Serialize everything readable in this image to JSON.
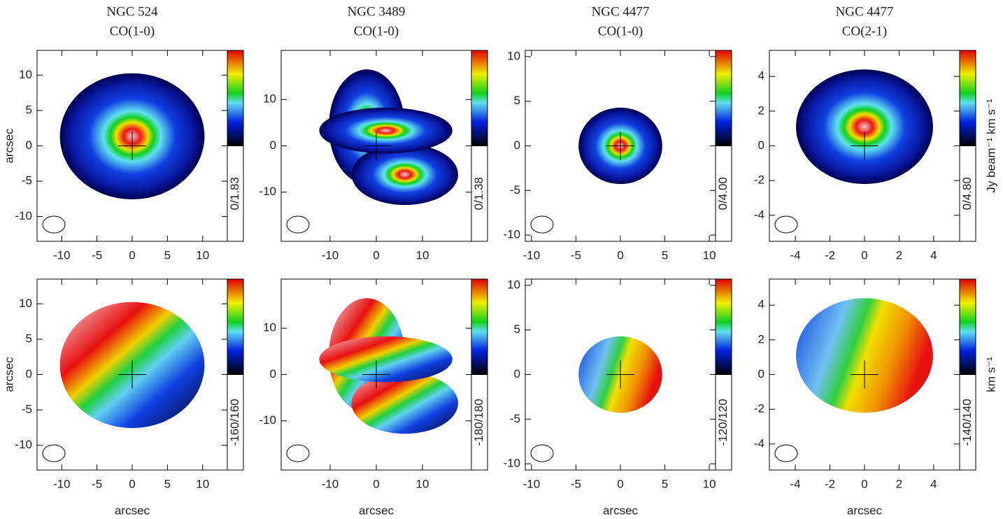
{
  "chart_data": [
    {
      "type": "map",
      "title": "NGC 524",
      "subtitle": "CO(1-0)",
      "ylabel": "arcsec",
      "xlim": [
        -13.5,
        13.5
      ],
      "ylim": [
        -13.5,
        13.5
      ],
      "xticks": [
        -10,
        -5,
        0,
        5,
        10
      ],
      "yticks": [
        -10,
        -5,
        0,
        5,
        10
      ],
      "colorbar_range": "0/1.83"
    },
    {
      "type": "map",
      "title": "NGC 3489",
      "subtitle": "CO(1-0)",
      "xlim": [
        -20.6,
        20.6
      ],
      "ylim": [
        -20.6,
        20.6
      ],
      "xticks": [
        -10,
        0,
        10
      ],
      "yticks": [
        -10,
        0,
        10
      ],
      "colorbar_range": "0/1.38"
    },
    {
      "type": "map",
      "title": "NGC 4477",
      "subtitle": "CO(1-0)",
      "xlim": [
        -10.7,
        10.7
      ],
      "ylim": [
        -10.7,
        10.7
      ],
      "xticks": [
        -10,
        -5,
        0,
        5,
        10
      ],
      "yticks": [
        -10,
        -5,
        0,
        5,
        10
      ],
      "colorbar_range": "0/4.00"
    },
    {
      "type": "map",
      "title": "NGC 4477",
      "subtitle": "CO(2-1)",
      "xlim": [
        -5.5,
        5.5
      ],
      "ylim": [
        -5.5,
        5.5
      ],
      "xticks": [
        -4,
        -2,
        0,
        2,
        4
      ],
      "yticks": [
        -4,
        -2,
        0,
        2,
        4
      ],
      "colorbar_range": "0/4.80",
      "colorbar_label": "Jy beam⁻¹ km s⁻¹"
    },
    {
      "type": "map",
      "xlabel": "arcsec",
      "ylabel": "arcsec",
      "xlim": [
        -13.5,
        13.5
      ],
      "ylim": [
        -13.5,
        13.5
      ],
      "xticks": [
        -10,
        -5,
        0,
        5,
        10
      ],
      "yticks": [
        -10,
        -5,
        0,
        5,
        10
      ],
      "colorbar_range": "-160/160"
    },
    {
      "type": "map",
      "xlabel": "arcsec",
      "xlim": [
        -20.6,
        20.6
      ],
      "ylim": [
        -20.6,
        20.6
      ],
      "xticks": [
        -10,
        0,
        10
      ],
      "yticks": [
        -10,
        0,
        10
      ],
      "colorbar_range": "-180/180"
    },
    {
      "type": "map",
      "xlabel": "arcsec",
      "xlim": [
        -10.7,
        10.7
      ],
      "ylim": [
        -10.7,
        10.7
      ],
      "xticks": [
        -10,
        -5,
        0,
        5,
        10
      ],
      "yticks": [
        -10,
        -5,
        0,
        5,
        10
      ],
      "colorbar_range": "-120/120"
    },
    {
      "type": "map",
      "xlabel": "arcsec",
      "xlim": [
        -5.5,
        5.5
      ],
      "ylim": [
        -5.5,
        5.5
      ],
      "xticks": [
        -4,
        -2,
        0,
        2,
        4
      ],
      "yticks": [
        -4,
        -2,
        0,
        2,
        4
      ],
      "colorbar_range": "-140/140",
      "colorbar_label": "km s⁻¹"
    }
  ]
}
